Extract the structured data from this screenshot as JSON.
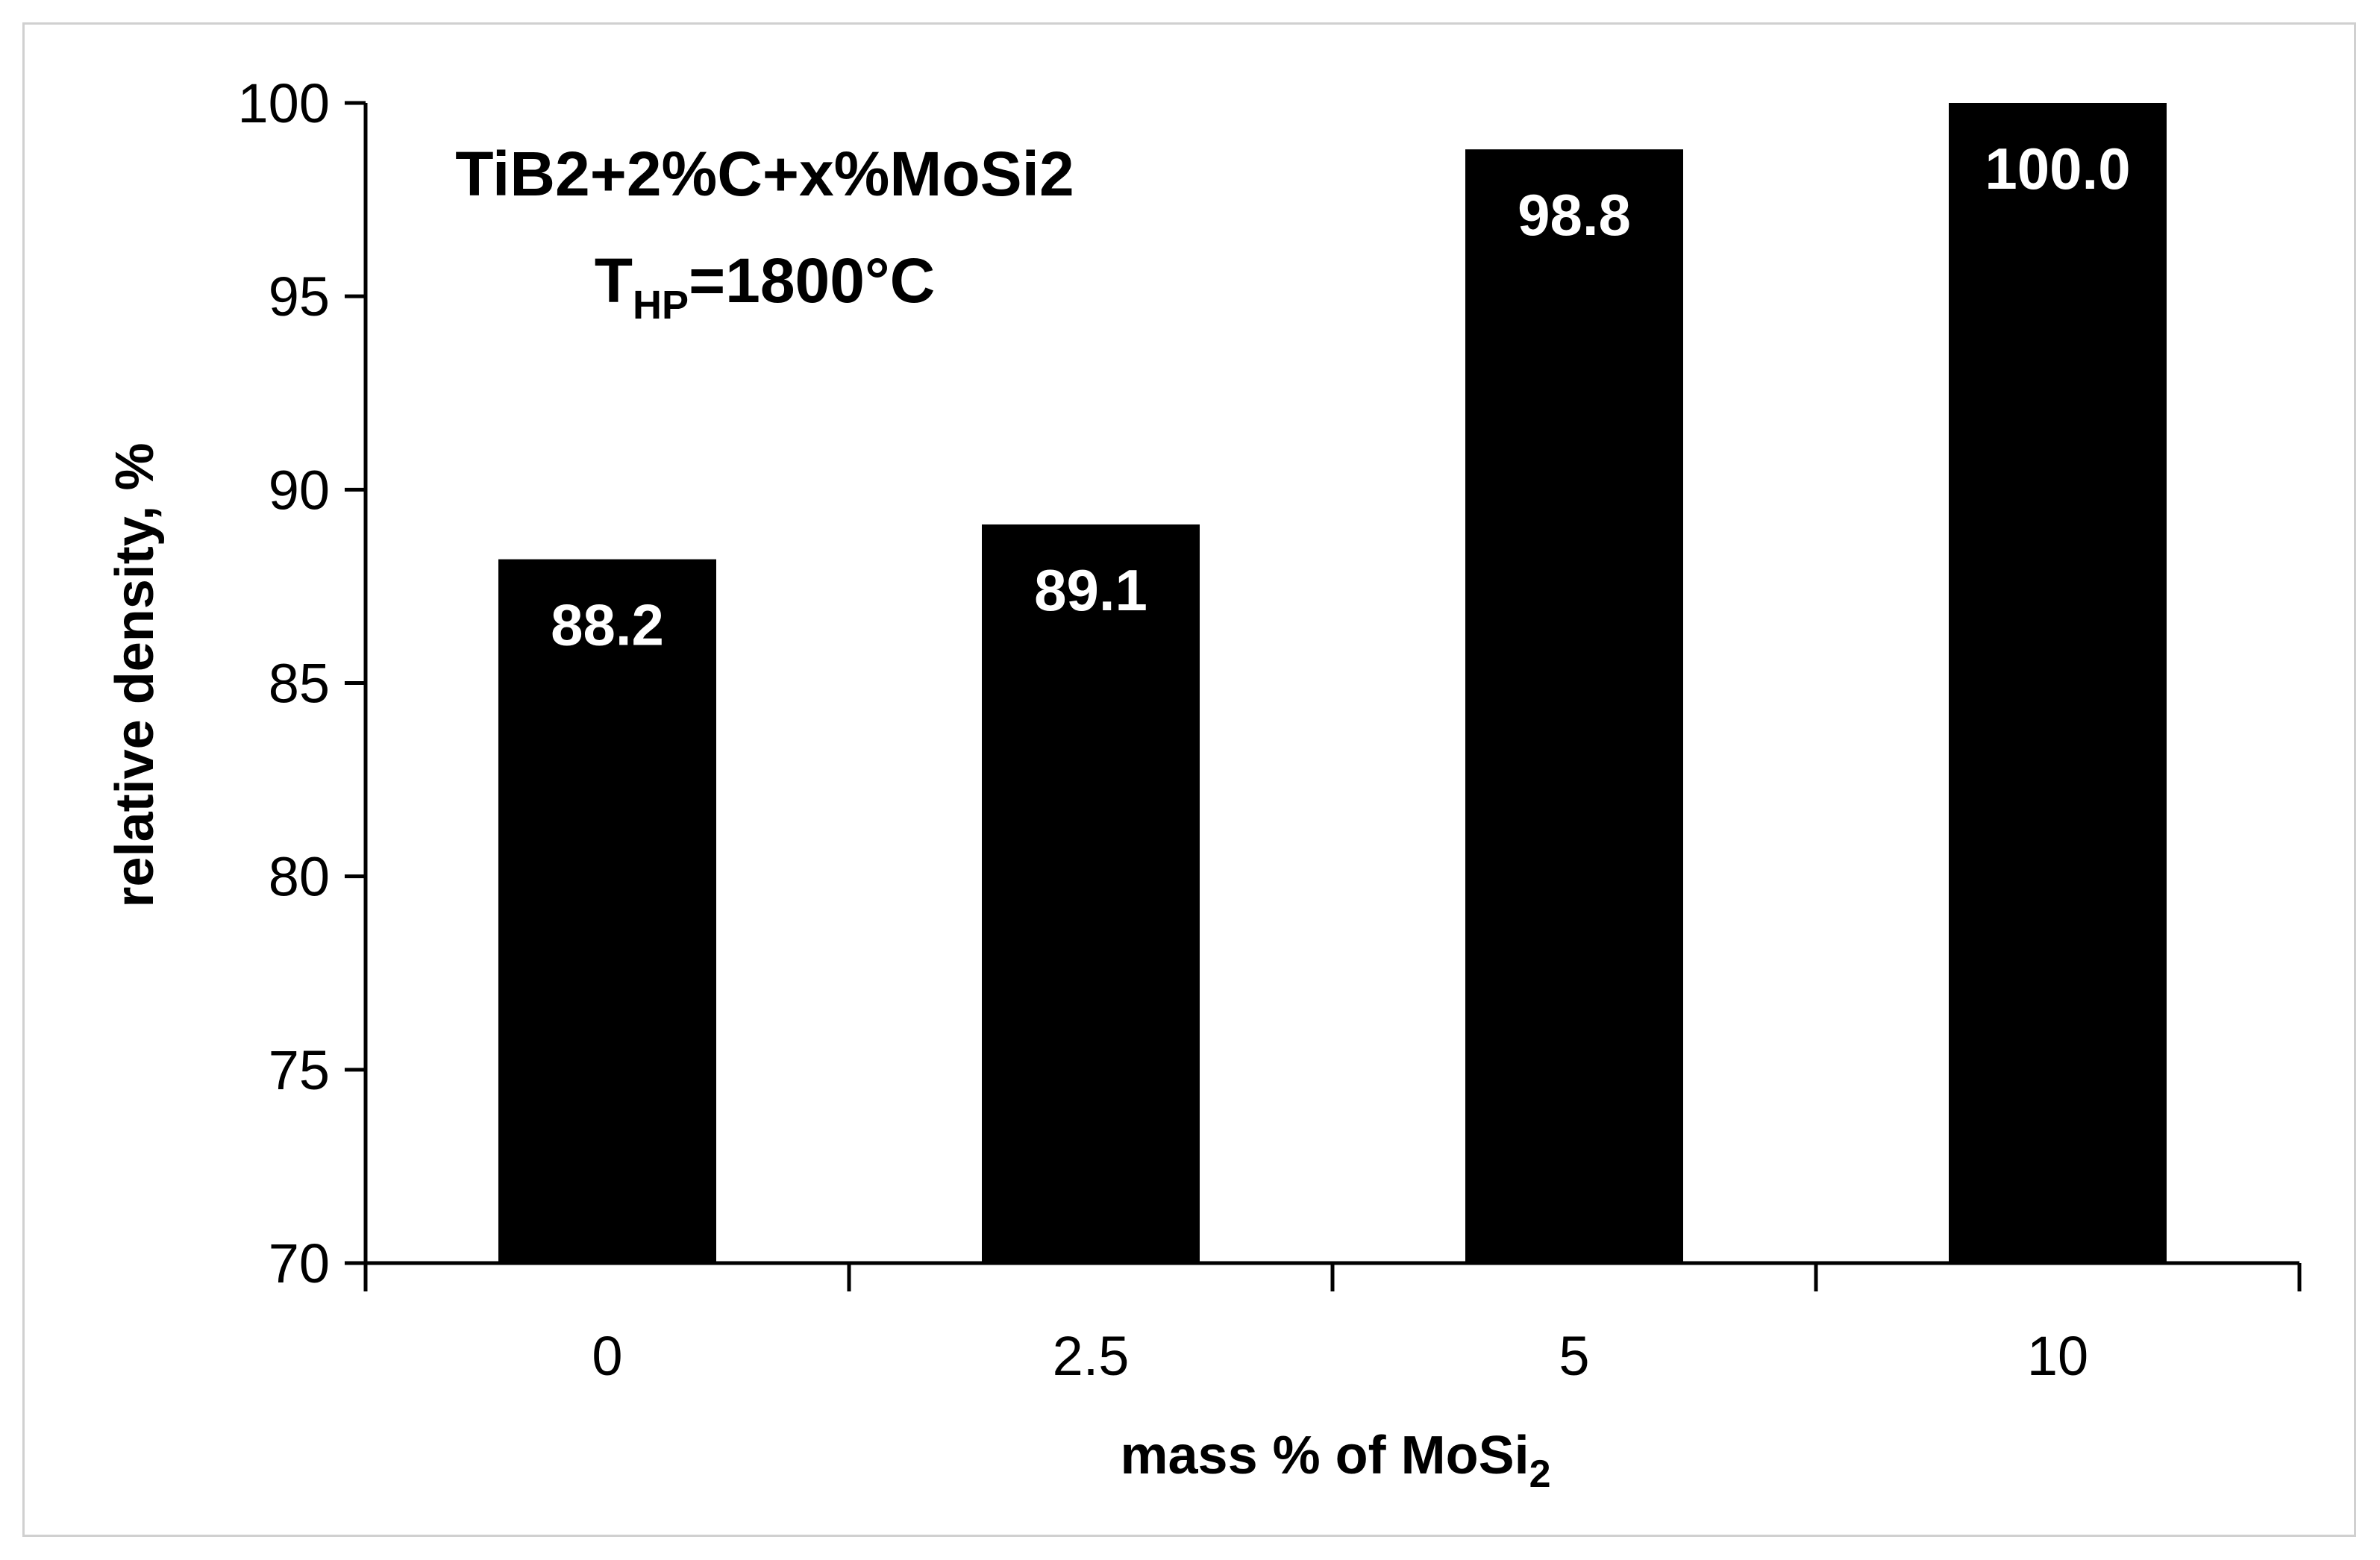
{
  "chart_data": {
    "type": "bar",
    "categories": [
      "0",
      "2.5",
      "5",
      "10"
    ],
    "values": [
      88.2,
      89.1,
      98.8,
      100.0
    ],
    "data_labels": [
      "88.2",
      "89.1",
      "98.8",
      "100.0"
    ],
    "ylim": [
      70,
      100
    ],
    "yticks": [
      "70",
      "75",
      "80",
      "85",
      "90",
      "95",
      "100"
    ],
    "xlabel": "mass % of MoSi",
    "xlabel_sub": "2",
    "ylabel": "relative density, %",
    "annotation": {
      "line1": "TiB2+2%C+x%MoSi2",
      "line2_main": "T",
      "line2_sub": "HP",
      "line2_rest": "=1800°C"
    },
    "grid": false,
    "legend": "none",
    "bar_color": "#000000",
    "label_color": "#ffffff"
  }
}
